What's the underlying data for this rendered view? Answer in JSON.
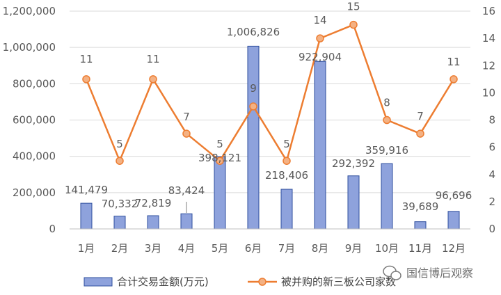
{
  "chart_data": {
    "type": "bar+line",
    "categories": [
      "1月",
      "2月",
      "3月",
      "4月",
      "5月",
      "6月",
      "7月",
      "8月",
      "9月",
      "10月",
      "11月",
      "12月"
    ],
    "series": [
      {
        "name": "合计交易金额(万元)",
        "type": "bar",
        "axis": "left",
        "color": "#8ea2dc",
        "values": [
          141479,
          70332,
          72819,
          83424,
          398121,
          1006826,
          218406,
          922904,
          292392,
          359916,
          39689,
          96696
        ],
        "labels": [
          "141,479",
          "70,332",
          "72,819",
          "83,424",
          "398,121",
          "1,006,826",
          "218,406",
          "922,904",
          "292,392",
          "359,916",
          "39,689",
          "96,696"
        ]
      },
      {
        "name": "被并购的新三板公司家数",
        "type": "line",
        "axis": "right",
        "color": "#ed7d31",
        "values": [
          11,
          5,
          11,
          7,
          5,
          9,
          5,
          14,
          15,
          8,
          7,
          11
        ],
        "labels": [
          "11",
          "5",
          "11",
          "7",
          "5",
          "9",
          "5",
          "14",
          "15",
          "8",
          "7",
          "11"
        ]
      }
    ],
    "y_left": {
      "min": 0,
      "max": 1200000,
      "step": 200000,
      "ticks": [
        "0",
        "200,000",
        "400,000",
        "600,000",
        "800,000",
        "1,000,000",
        "1,200,000"
      ]
    },
    "y_right": {
      "min": 0,
      "max": 16,
      "step": 2,
      "ticks": [
        "0",
        "2",
        "4",
        "6",
        "8",
        "10",
        "12",
        "14",
        "16"
      ]
    },
    "grid": true,
    "legend": "bottom"
  },
  "watermark": {
    "text": "国信博后观察",
    "icon": "wechat-icon"
  }
}
